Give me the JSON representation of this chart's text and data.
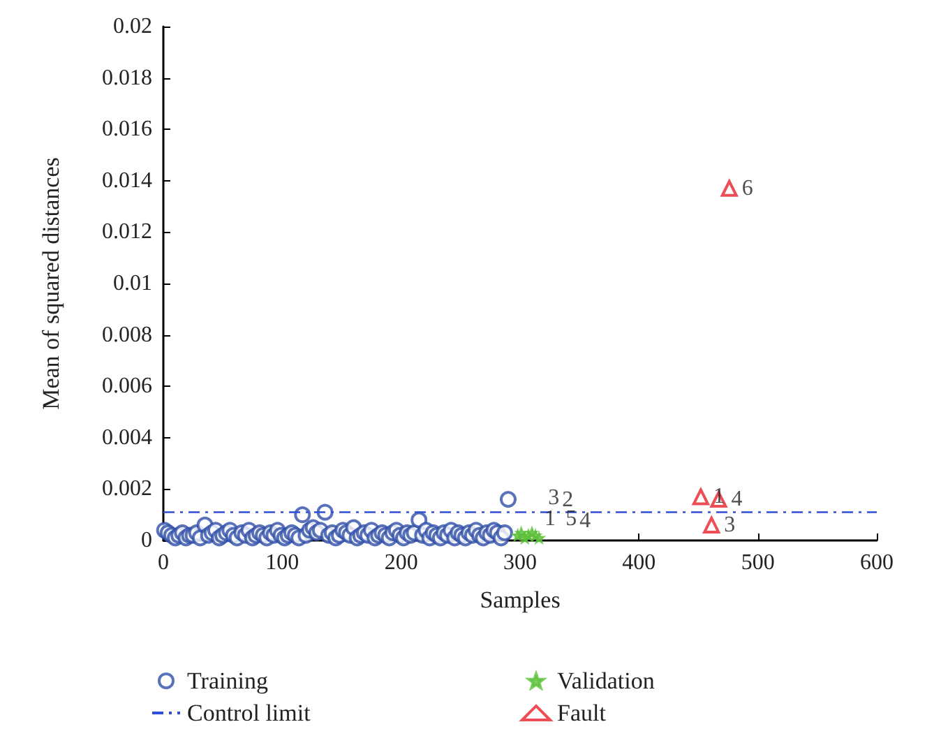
{
  "chart_data": {
    "type": "scatter",
    "xlabel": "Samples",
    "ylabel": "Mean of squared distances",
    "xlim": [
      0,
      600
    ],
    "xticks": [
      0,
      100,
      200,
      300,
      400,
      500,
      600
    ],
    "ylim": [
      0,
      0.02
    ],
    "yticks": [
      0,
      0.002,
      0.004,
      0.006,
      0.008,
      0.01,
      0.012,
      0.014,
      0.016,
      0.018,
      0.02
    ],
    "legend": "bottom",
    "grid": false,
    "series": [
      {
        "name": "Training",
        "marker": "circle",
        "color": "#2f4fa8",
        "x": [
          1,
          4,
          7,
          10,
          13,
          16,
          19,
          22,
          25,
          28,
          31,
          35,
          38,
          41,
          44,
          47,
          50,
          53,
          56,
          59,
          62,
          66,
          69,
          72,
          75,
          78,
          81,
          84,
          87,
          90,
          93,
          96,
          99,
          102,
          105,
          108,
          111,
          114,
          117,
          120,
          123,
          126,
          129,
          132,
          136,
          139,
          142,
          145,
          148,
          151,
          154,
          157,
          160,
          163,
          166,
          169,
          172,
          175,
          178,
          181,
          184,
          187,
          190,
          193,
          196,
          199,
          202,
          205,
          208,
          211,
          215,
          218,
          221,
          224,
          227,
          230,
          233,
          236,
          239,
          242,
          245,
          248,
          251,
          254,
          257,
          260,
          263,
          266,
          269,
          272,
          275,
          278,
          281,
          284,
          287,
          290
        ],
        "values": [
          0.0004,
          0.0003,
          0.0002,
          0.0001,
          0.0002,
          0.0003,
          0.0001,
          0.0002,
          0.0002,
          0.0003,
          0.0001,
          0.0006,
          0.0002,
          0.0003,
          0.0004,
          0.0001,
          0.0002,
          0.0003,
          0.0004,
          0.0002,
          0.0001,
          0.0003,
          0.0002,
          0.0004,
          0.0001,
          0.0002,
          0.0003,
          0.0002,
          0.0001,
          0.0003,
          0.0002,
          0.0004,
          0.0002,
          0.0001,
          0.0002,
          0.0003,
          0.0002,
          0.0001,
          0.001,
          0.0002,
          0.0004,
          0.0005,
          0.0003,
          0.0004,
          0.0011,
          0.0002,
          0.0003,
          0.0001,
          0.0002,
          0.0004,
          0.0003,
          0.0002,
          0.0005,
          0.0001,
          0.0002,
          0.0003,
          0.0002,
          0.0004,
          0.0001,
          0.0002,
          0.0003,
          0.0002,
          0.0001,
          0.0003,
          0.0004,
          0.0002,
          0.0001,
          0.0003,
          0.0002,
          0.0003,
          0.0008,
          0.0002,
          0.0004,
          0.0001,
          0.0003,
          0.0002,
          0.0001,
          0.0003,
          0.0002,
          0.0004,
          0.0001,
          0.0003,
          0.0002,
          0.0001,
          0.0003,
          0.0002,
          0.0004,
          0.0002,
          0.0001,
          0.0003,
          0.0002,
          0.0004,
          0.0003,
          0.0001,
          0.0003,
          0.0016
        ]
      },
      {
        "name": "Validation",
        "marker": "star",
        "color": "#5cc13a",
        "x": [
          298,
          301,
          304,
          307,
          310,
          313,
          316
        ],
        "values": [
          0.0002,
          0.0003,
          0.0001,
          0.0002,
          0.0003,
          0.0002,
          0.0001
        ]
      },
      {
        "name": "Control limit",
        "type": "line",
        "line_style": "dashed",
        "marker": "none",
        "color": "#2f4fd6",
        "x": [
          0,
          600
        ],
        "values": [
          0.0011,
          0.0011
        ]
      },
      {
        "name": "Fault",
        "marker": "triangle",
        "color": "#e8212b",
        "x": [
          452,
          467,
          461,
          476
        ],
        "values": [
          0.0017,
          0.0016,
          0.0006,
          0.0137
        ]
      }
    ],
    "annotations": [
      {
        "text": "1",
        "x": 452,
        "y": 0.0017
      },
      {
        "text": "4",
        "x": 467,
        "y": 0.0016
      },
      {
        "text": "3",
        "x": 461,
        "y": 0.0006
      },
      {
        "text": "6",
        "x": 476,
        "y": 0.0137
      },
      {
        "text": "1",
        "x": 310,
        "y": 0.0002
      },
      {
        "text": "3",
        "x": 313,
        "y": 0.0002
      },
      {
        "text": "5",
        "x": 316,
        "y": 0.0002
      },
      {
        "text": "2",
        "x": 313,
        "y": 0.0001
      },
      {
        "text": "4",
        "x": 316,
        "y": 0.0001
      }
    ]
  }
}
